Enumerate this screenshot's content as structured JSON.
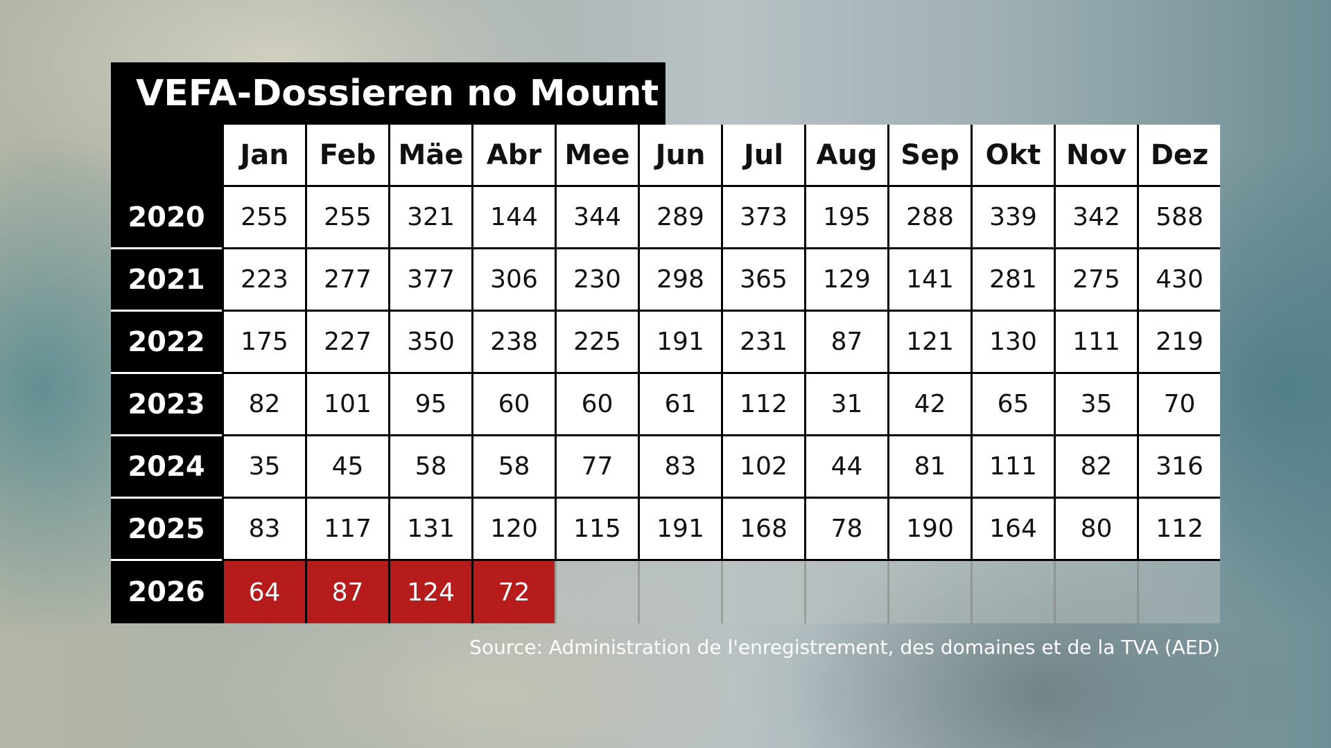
{
  "chart_data": {
    "type": "table",
    "title": "VEFA-Dossieren no Mount",
    "source": "Source: Administration de l'enregistrement, des domaines et de la TVA (AED)",
    "columns": [
      "Jan",
      "Feb",
      "Mäe",
      "Abr",
      "Mee",
      "Jun",
      "Jul",
      "Aug",
      "Sep",
      "Okt",
      "Nov",
      "Dez"
    ],
    "rows": [
      {
        "year": "2020",
        "values": [
          255,
          255,
          321,
          144,
          344,
          289,
          373,
          195,
          288,
          339,
          342,
          588
        ]
      },
      {
        "year": "2021",
        "values": [
          223,
          277,
          377,
          306,
          230,
          298,
          365,
          129,
          141,
          281,
          275,
          430
        ]
      },
      {
        "year": "2022",
        "values": [
          175,
          227,
          350,
          238,
          225,
          191,
          231,
          87,
          121,
          130,
          111,
          219
        ]
      },
      {
        "year": "2023",
        "values": [
          82,
          101,
          95,
          60,
          60,
          61,
          112,
          31,
          42,
          65,
          35,
          70
        ]
      },
      {
        "year": "2024",
        "values": [
          35,
          45,
          58,
          58,
          77,
          83,
          102,
          44,
          81,
          111,
          82,
          316
        ]
      },
      {
        "year": "2025",
        "values": [
          83,
          117,
          131,
          120,
          115,
          191,
          168,
          78,
          190,
          164,
          80,
          112
        ]
      },
      {
        "year": "2026",
        "values": [
          64,
          87,
          124,
          72
        ]
      }
    ],
    "highlight_row": "2026",
    "colors": {
      "header_bg": "#000000",
      "cell_bg": "#ffffff",
      "highlight_bg": "#b71c1c",
      "highlight_text": "#ffffff"
    }
  }
}
